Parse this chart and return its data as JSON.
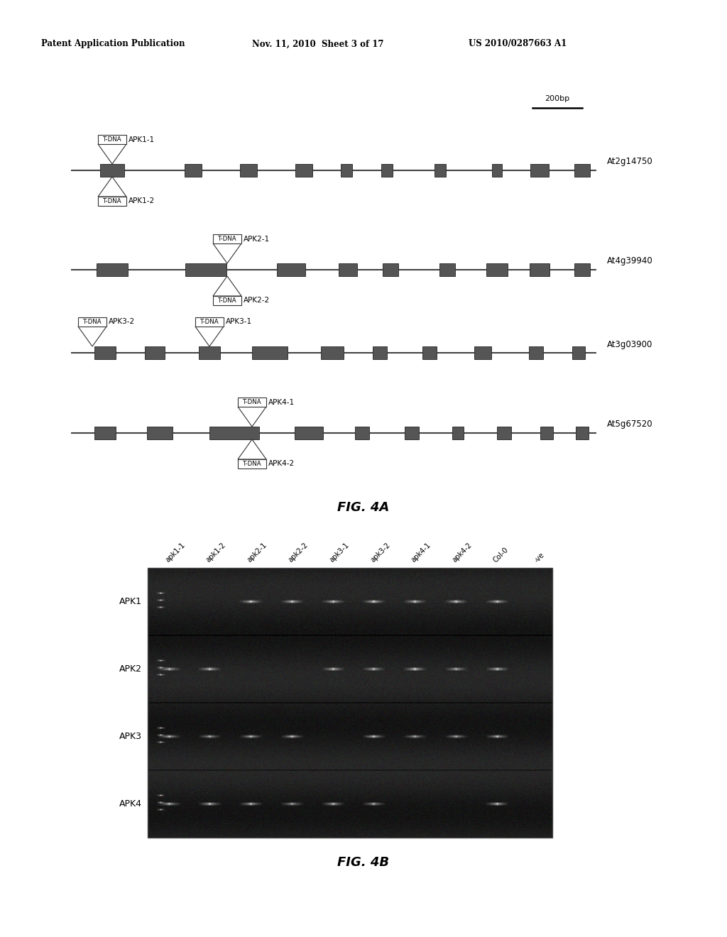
{
  "header_left": "Patent Application Publication",
  "header_mid": "Nov. 11, 2010  Sheet 3 of 17",
  "header_right": "US 2010/0287663 A1",
  "fig4a_label": "FIG. 4A",
  "fig4b_label": "FIG. 4B",
  "scale_bar_label": "200bp",
  "gene_labels": [
    "At2g14750",
    "At4g39940",
    "At3g03900",
    "At5g67520"
  ],
  "gel_row_labels": [
    "APK1",
    "APK2",
    "APK3",
    "APK4"
  ],
  "gel_col_labels": [
    "apk1-1",
    "apk1-2",
    "apk2-1",
    "apk2-2",
    "apk3-1",
    "apk3-2",
    "apk4-1",
    "apk4-2",
    "Col-0",
    "-ve"
  ],
  "bg_color": "#ffffff"
}
